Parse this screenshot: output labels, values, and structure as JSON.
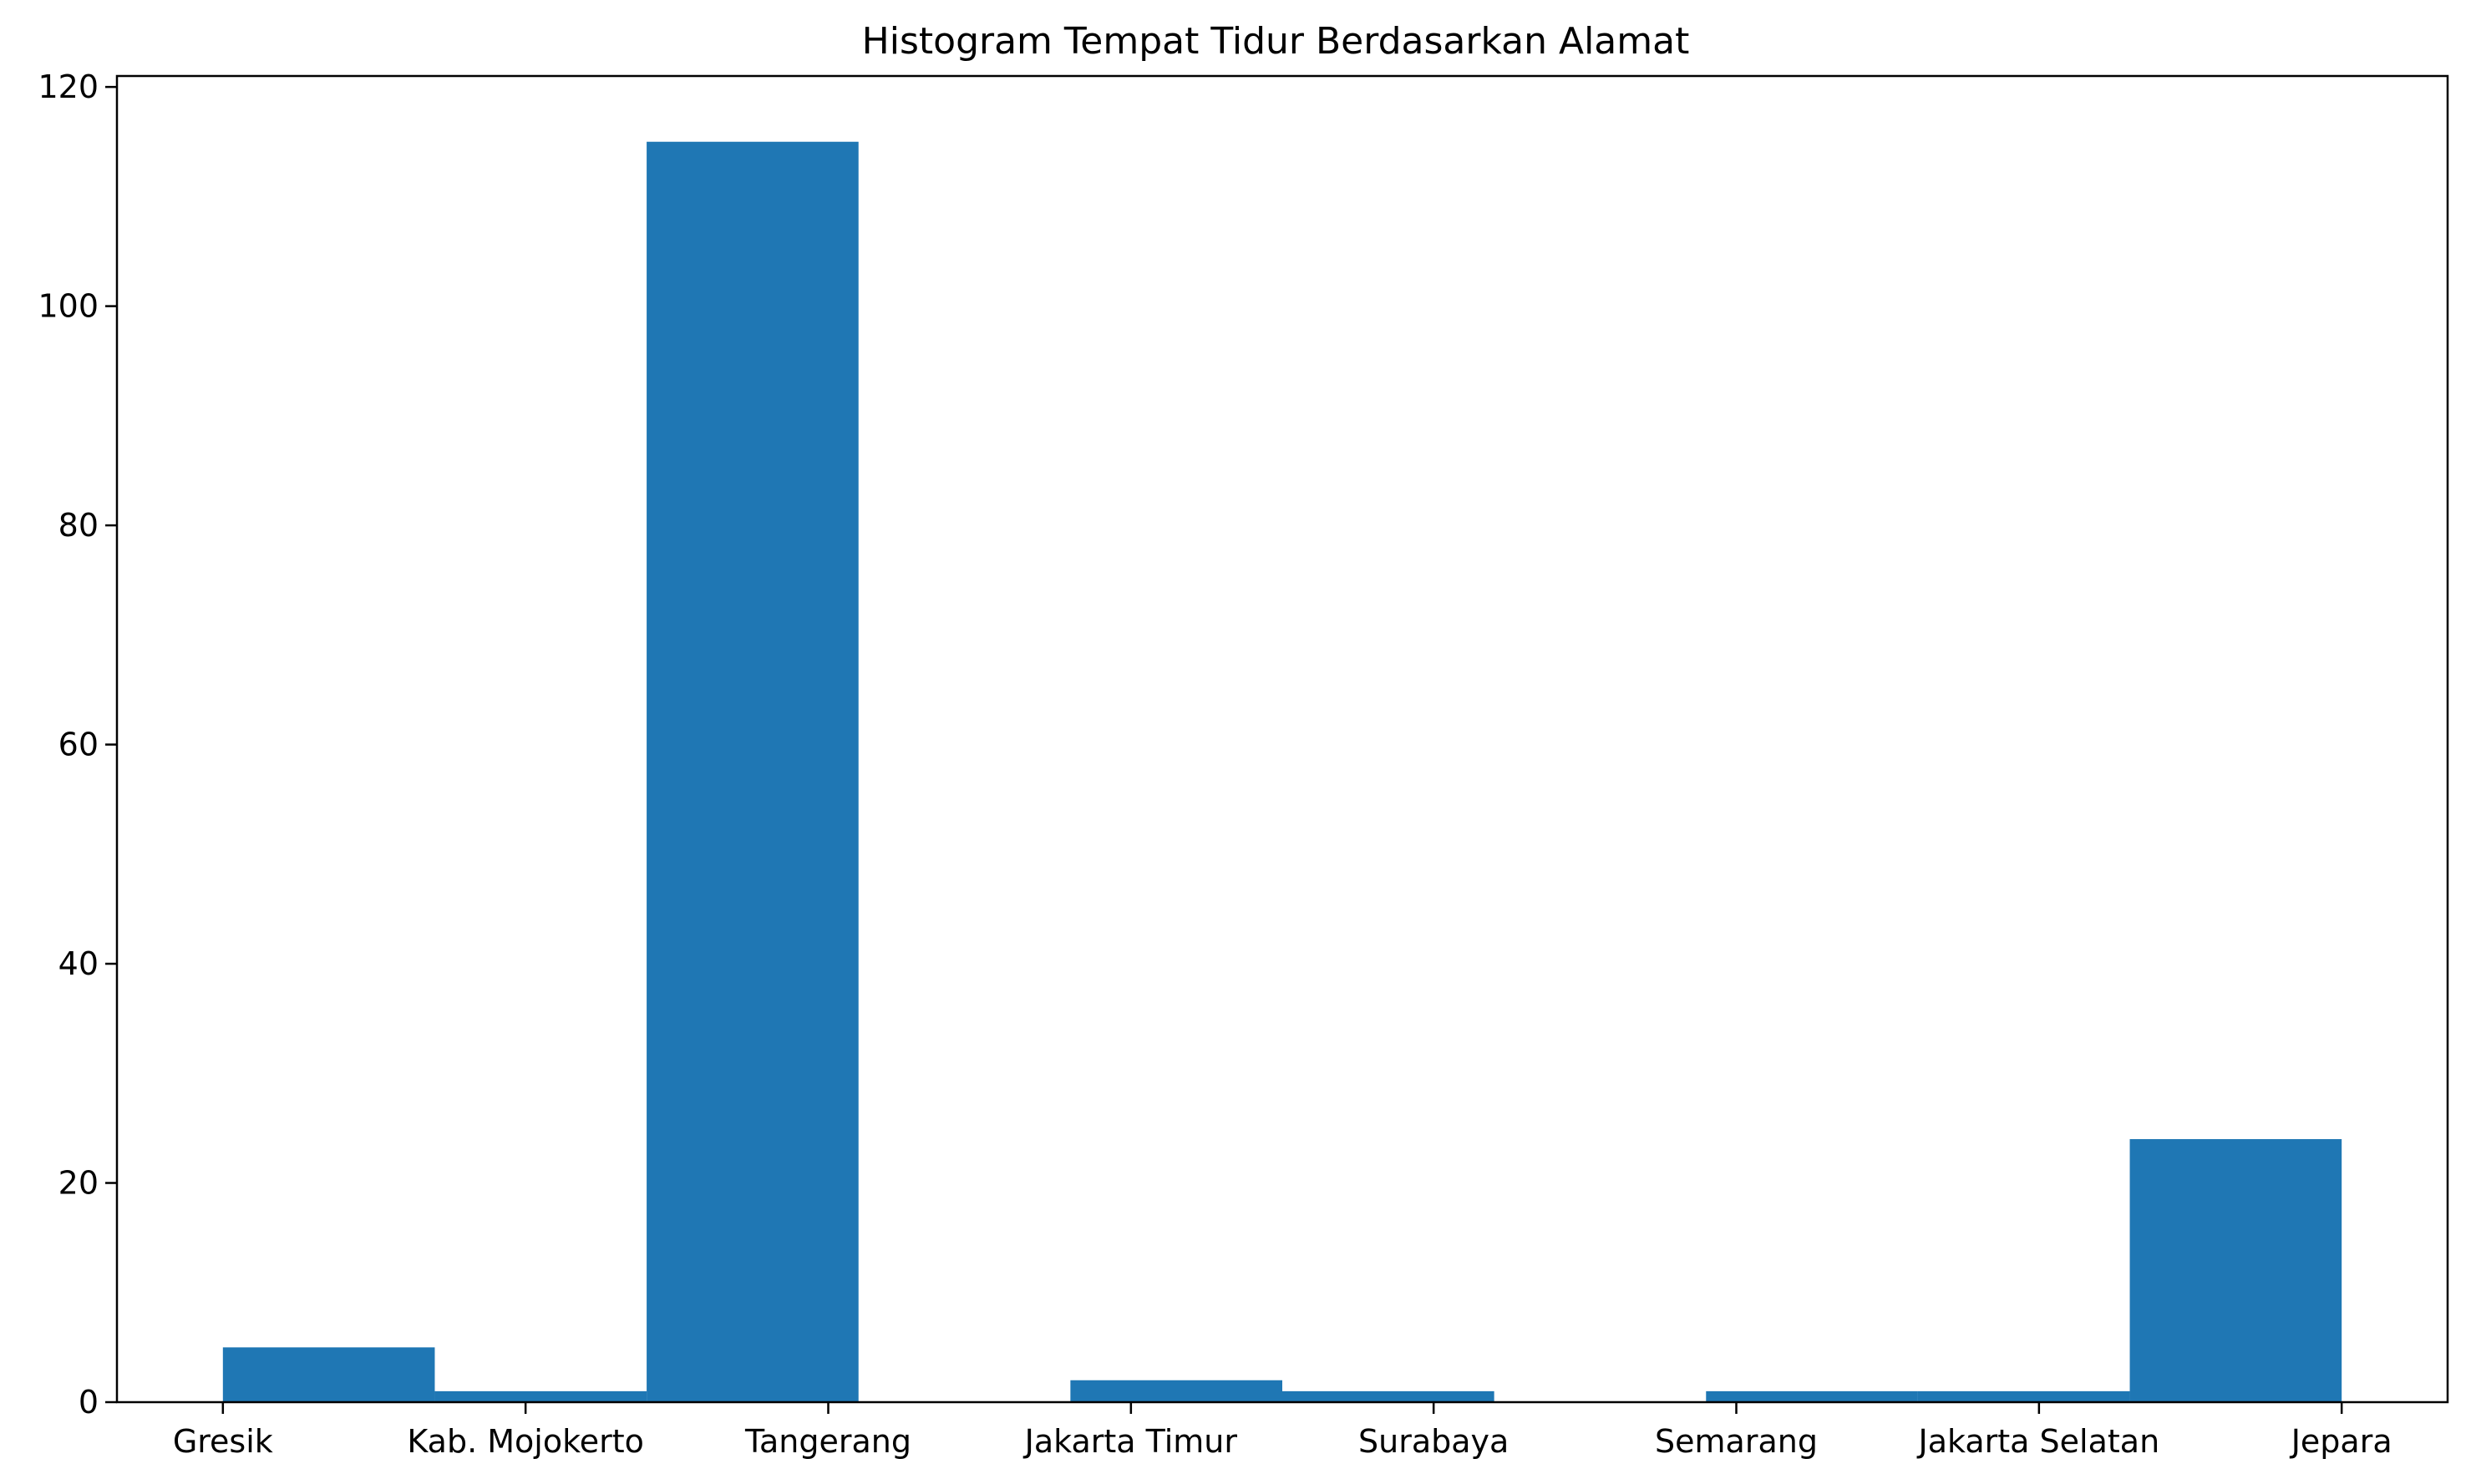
{
  "chart_data": {
    "type": "bar",
    "title": "Histogram Tempat Tidur Berdasarkan Alamat",
    "xlabel": "",
    "ylabel": "",
    "ylim": [
      0,
      121
    ],
    "y_ticks": [
      0,
      20,
      40,
      60,
      80,
      100,
      120
    ],
    "x_range": [
      -0.35,
      7.35
    ],
    "x_tick_labels": [
      {
        "label": "Gresik",
        "x": 0
      },
      {
        "label": "Kab. Mojokerto",
        "x": 1
      },
      {
        "label": "Tangerang",
        "x": 2
      },
      {
        "label": "Jakarta Timur",
        "x": 3
      },
      {
        "label": "Surabaya",
        "x": 4
      },
      {
        "label": "Semarang",
        "x": 5
      },
      {
        "label": "Jakarta Selatan",
        "x": 6
      },
      {
        "label": "Jepara",
        "x": 7
      }
    ],
    "bins": [
      {
        "x0": 0.0,
        "x1": 0.7,
        "count": 5
      },
      {
        "x0": 0.7,
        "x1": 1.4,
        "count": 1
      },
      {
        "x0": 1.4,
        "x1": 2.1,
        "count": 115
      },
      {
        "x0": 2.1,
        "x1": 2.8,
        "count": 0
      },
      {
        "x0": 2.8,
        "x1": 3.5,
        "count": 2
      },
      {
        "x0": 3.5,
        "x1": 4.2,
        "count": 1
      },
      {
        "x0": 4.2,
        "x1": 4.9,
        "count": 0
      },
      {
        "x0": 4.9,
        "x1": 5.6,
        "count": 1
      },
      {
        "x0": 5.6,
        "x1": 6.3,
        "count": 1
      },
      {
        "x0": 6.3,
        "x1": 7.0,
        "count": 24
      }
    ],
    "bar_color": "#1f77b4",
    "grid": false,
    "legend": "none"
  }
}
